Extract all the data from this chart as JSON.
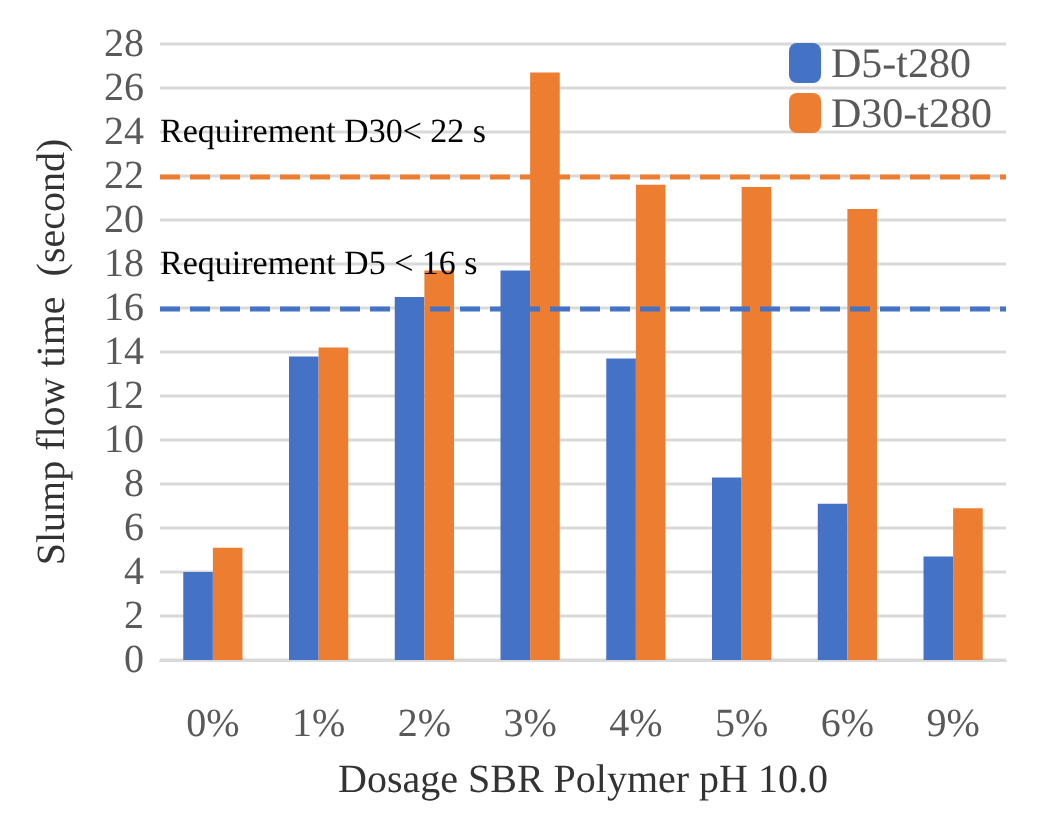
{
  "chart_data": {
    "type": "bar",
    "xlabel": "Dosage SBR Polymer pH 10.0",
    "ylabel": "Slump flow time  (second)",
    "categories": [
      "0%",
      "1%",
      "2%",
      "3%",
      "4%",
      "5%",
      "6%",
      "9%"
    ],
    "series": [
      {
        "name": "D5-t280",
        "color": "#4472c4",
        "values": [
          4.0,
          13.8,
          16.5,
          17.7,
          13.7,
          8.3,
          7.1,
          4.7
        ]
      },
      {
        "name": "D30-t280",
        "color": "#ed7d31",
        "values": [
          5.1,
          14.2,
          17.7,
          26.7,
          21.6,
          21.5,
          20.5,
          6.9
        ]
      }
    ],
    "ylim": [
      0,
      28
    ],
    "yticks": [
      0,
      2,
      4,
      6,
      8,
      10,
      12,
      14,
      16,
      18,
      20,
      22,
      24,
      26,
      28
    ],
    "grid": "y",
    "legend": "top right",
    "ref_lines": [
      {
        "axis": "y",
        "value": 22,
        "label": "Requirement D30< 22 s",
        "color": "#ed7d31",
        "line_style": "dashed"
      },
      {
        "axis": "y",
        "value": 16,
        "label": "Requirement D5 < 16 s",
        "color": "#4472c4",
        "line_style": "dashed"
      }
    ]
  }
}
